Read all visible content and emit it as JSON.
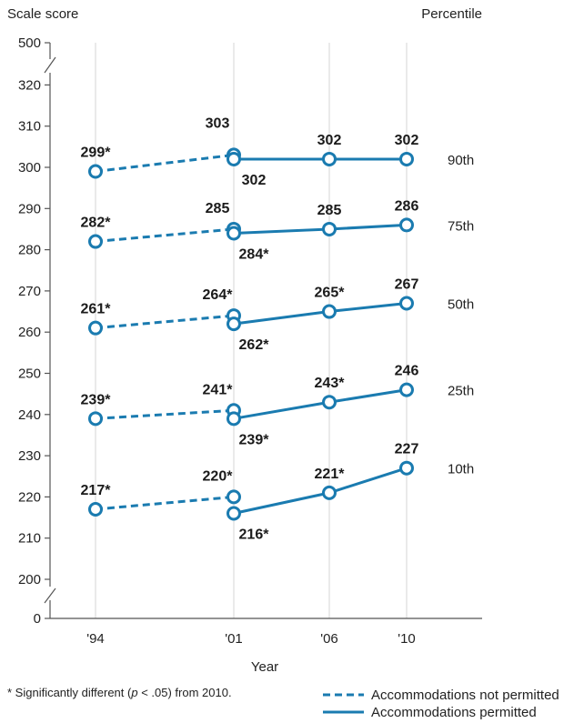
{
  "chart_data": {
    "type": "line",
    "ylabel": "Scale score",
    "right_label": "Percentile",
    "xlabel": "Year",
    "categories": [
      "'94",
      "'01",
      "'06",
      "'10"
    ],
    "y_ticks": [
      0,
      200,
      210,
      220,
      230,
      240,
      250,
      260,
      270,
      280,
      290,
      300,
      310,
      320,
      500
    ],
    "y_axis_break": "between 0 and 200, and between 320 and 500",
    "ylim": [
      195,
      325
    ],
    "grid": "vertical lines at each year",
    "colors": {
      "line": "#1a7bb0",
      "text": "#1a1a1a"
    },
    "series": [
      {
        "name": "90th",
        "not_permitted": [
          {
            "x": "'94",
            "y": 299,
            "label": "299*"
          },
          {
            "x": "'01",
            "y": 303,
            "label": "303"
          }
        ],
        "permitted": [
          {
            "x": "'01",
            "y": 302,
            "label": "302"
          },
          {
            "x": "'06",
            "y": 302,
            "label": "302"
          },
          {
            "x": "'10",
            "y": 302,
            "label": "302"
          }
        ]
      },
      {
        "name": "75th",
        "not_permitted": [
          {
            "x": "'94",
            "y": 282,
            "label": "282*"
          },
          {
            "x": "'01",
            "y": 285,
            "label": "285"
          }
        ],
        "permitted": [
          {
            "x": "'01",
            "y": 284,
            "label": "284*"
          },
          {
            "x": "'06",
            "y": 285,
            "label": "285"
          },
          {
            "x": "'10",
            "y": 286,
            "label": "286"
          }
        ]
      },
      {
        "name": "50th",
        "not_permitted": [
          {
            "x": "'94",
            "y": 261,
            "label": "261*"
          },
          {
            "x": "'01",
            "y": 264,
            "label": "264*"
          }
        ],
        "permitted": [
          {
            "x": "'01",
            "y": 262,
            "label": "262*"
          },
          {
            "x": "'06",
            "y": 265,
            "label": "265*"
          },
          {
            "x": "'10",
            "y": 267,
            "label": "267"
          }
        ]
      },
      {
        "name": "25th",
        "not_permitted": [
          {
            "x": "'94",
            "y": 239,
            "label": "239*"
          },
          {
            "x": "'01",
            "y": 241,
            "label": "241*"
          }
        ],
        "permitted": [
          {
            "x": "'01",
            "y": 239,
            "label": "239*"
          },
          {
            "x": "'06",
            "y": 243,
            "label": "243*"
          },
          {
            "x": "'10",
            "y": 246,
            "label": "246"
          }
        ]
      },
      {
        "name": "10th",
        "not_permitted": [
          {
            "x": "'94",
            "y": 217,
            "label": "217*"
          },
          {
            "x": "'01",
            "y": 220,
            "label": "220*"
          }
        ],
        "permitted": [
          {
            "x": "'01",
            "y": 216,
            "label": "216*"
          },
          {
            "x": "'06",
            "y": 221,
            "label": "221*"
          },
          {
            "x": "'10",
            "y": 227,
            "label": "227"
          }
        ]
      }
    ],
    "legend": {
      "placement": "bottom-right",
      "not_permitted": "Accommodations not permitted",
      "permitted": "Accommodations permitted"
    },
    "footnote": "* Significantly different (p < .05) from 2010."
  }
}
